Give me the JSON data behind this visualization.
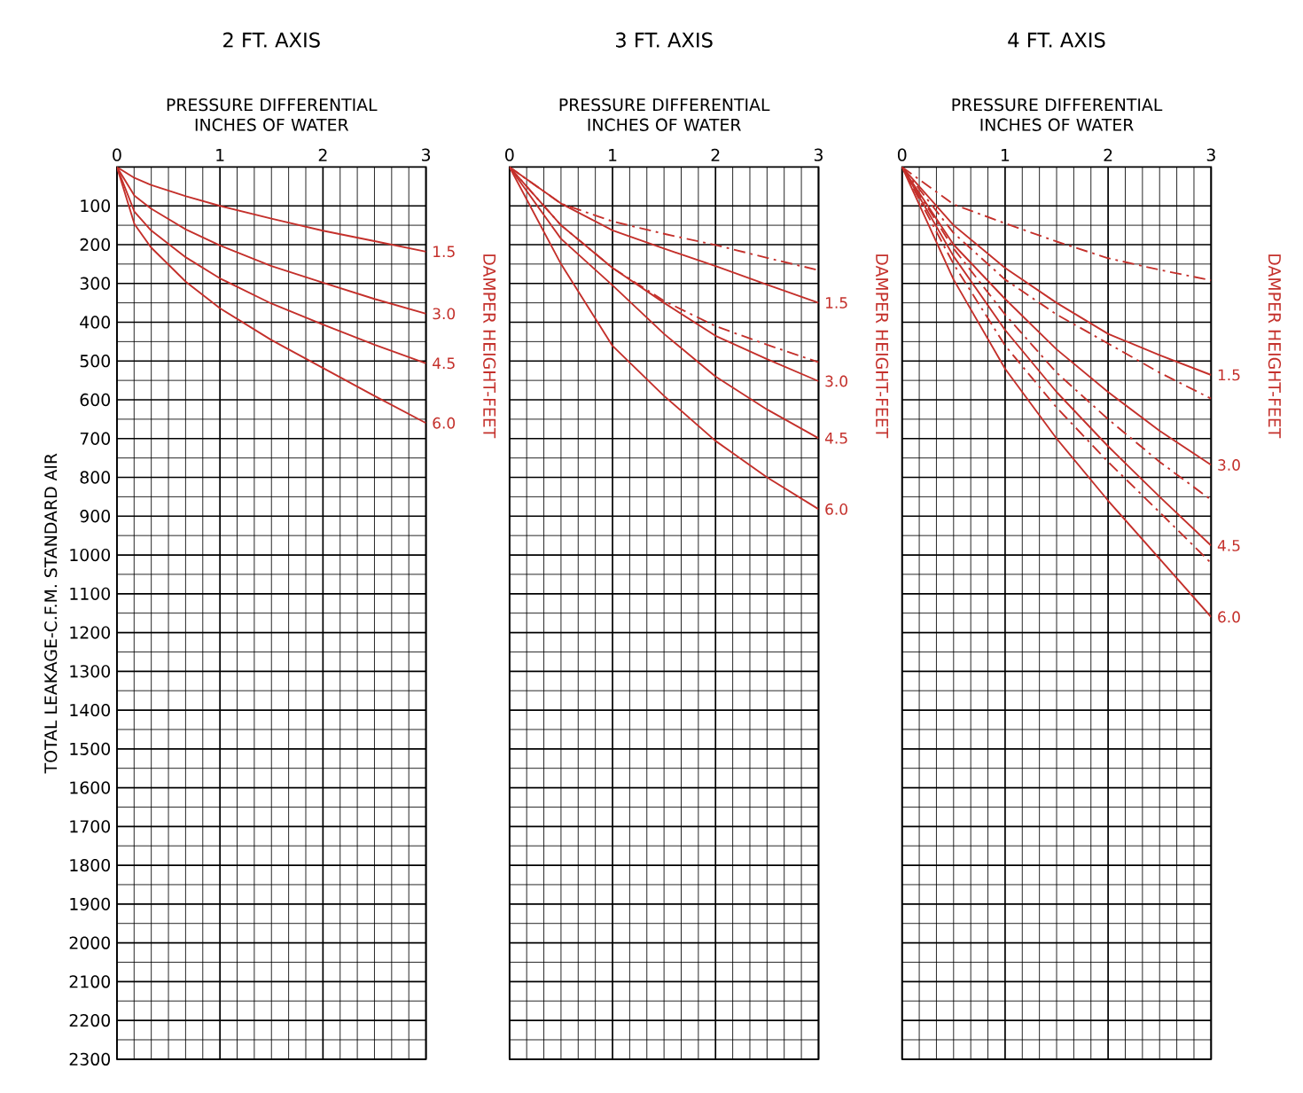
{
  "chart_data": [
    {
      "type": "line",
      "title": "2 FT. AXIS",
      "xlabel": "PRESSURE DIFFERENTIAL INCHES OF WATER",
      "ylabel": "TOTAL LEAKAGE-C.F.M. STANDARD AIR",
      "y2label": "DAMPER HEIGHT-FEET",
      "xlim": [
        0,
        3
      ],
      "xticks": [
        0,
        1,
        2,
        3
      ],
      "ylim": [
        2300,
        0
      ],
      "yticks": [
        100,
        200,
        300,
        400,
        500,
        600,
        700,
        800,
        900,
        1000,
        1100,
        1200,
        1300,
        1400,
        1500,
        1600,
        1700,
        1800,
        1900,
        2000,
        2100,
        2200,
        2300
      ],
      "grid": true,
      "x": [
        0,
        0.17,
        0.33,
        0.67,
        1,
        1.5,
        2,
        2.5,
        3
      ],
      "series": [
        {
          "name": "1.5",
          "color": "#c4302b",
          "values": [
            0,
            28,
            46,
            75,
            100,
            133,
            164,
            191,
            218
          ]
        },
        {
          "name": "3.0",
          "color": "#c4302b",
          "values": [
            0,
            74,
            107,
            161,
            202,
            255,
            298,
            340,
            378
          ]
        },
        {
          "name": "4.5",
          "color": "#c4302b",
          "values": [
            0,
            115,
            163,
            233,
            287,
            352,
            406,
            458,
            506
          ]
        },
        {
          "name": "6.0",
          "color": "#c4302b",
          "values": [
            0,
            147,
            207,
            296,
            364,
            446,
            518,
            590,
            660
          ]
        }
      ]
    },
    {
      "type": "line",
      "title": "3 FT. AXIS",
      "xlabel": "PRESSURE DIFFERENTIAL INCHES OF WATER",
      "y2label": "DAMPER HEIGHT-FEET",
      "xlim": [
        0,
        3
      ],
      "xticks": [
        0,
        1,
        2,
        3
      ],
      "ylim": [
        2300,
        0
      ],
      "yticks": [
        100,
        200,
        300,
        400,
        500,
        600,
        700,
        800,
        900,
        1000,
        1100,
        1200,
        1300,
        1400,
        1500,
        1600,
        1700,
        1800,
        1900,
        2000,
        2100,
        2200,
        2300
      ],
      "grid": true,
      "tick_labels": "x",
      "x": [
        0,
        0.5,
        1,
        1.5,
        2,
        2.5,
        3
      ],
      "series": [
        {
          "color": "#c4302b",
          "line_style": "dashed",
          "values": [
            0,
            94,
            140,
            172,
            201,
            234,
            266
          ]
        },
        {
          "name": "1.5",
          "color": "#c4302b",
          "values": [
            0,
            94,
            163,
            210,
            255,
            303,
            350
          ]
        },
        {
          "color": "#c4302b",
          "line_style": "dashed",
          "values": [
            0,
            150,
            260,
            345,
            410,
            458,
            503
          ]
        },
        {
          "name": "3.0",
          "color": "#c4302b",
          "values": [
            0,
            150,
            260,
            350,
            435,
            495,
            552
          ]
        },
        {
          "name": "4.5",
          "color": "#c4302b",
          "values": [
            0,
            185,
            305,
            430,
            540,
            625,
            699
          ]
        },
        {
          "name": "6.0",
          "color": "#c4302b",
          "values": [
            0,
            250,
            461,
            590,
            706,
            800,
            882
          ]
        }
      ]
    },
    {
      "type": "line",
      "title": "4 FT. AXIS",
      "xlabel": "PRESSURE DIFFERENTIAL INCHES OF WATER",
      "y2label": "DAMPER HEIGHT-FEET",
      "xlim": [
        0,
        3
      ],
      "xticks": [
        0,
        1,
        2,
        3
      ],
      "ylim": [
        2300,
        0
      ],
      "yticks": [
        100,
        200,
        300,
        400,
        500,
        600,
        700,
        800,
        900,
        1000,
        1100,
        1200,
        1300,
        1400,
        1500,
        1600,
        1700,
        1800,
        1900,
        2000,
        2100,
        2200,
        2300
      ],
      "grid": true,
      "tick_labels": "x",
      "x": [
        0,
        0.5,
        1,
        1.5,
        2,
        2.5,
        3
      ],
      "series": [
        {
          "color": "#c4302b",
          "line_style": "dashed",
          "values": [
            0,
            96,
            145,
            192,
            235,
            265,
            292
          ]
        },
        {
          "name": "1.5",
          "color": "#c4302b",
          "values": [
            0,
            150,
            260,
            350,
            430,
            485,
            536
          ]
        },
        {
          "color": "#c4302b",
          "line_style": "dashed",
          "values": [
            0,
            170,
            290,
            380,
            455,
            530,
            597
          ]
        },
        {
          "name": "3.0",
          "color": "#c4302b",
          "values": [
            0,
            200,
            340,
            470,
            580,
            680,
            768
          ]
        },
        {
          "color": "#c4302b",
          "line_style": "dashed",
          "values": [
            0,
            210,
            380,
            530,
            650,
            760,
            858
          ]
        },
        {
          "name": "4.5",
          "color": "#c4302b",
          "values": [
            0,
            230,
            420,
            580,
            720,
            850,
            976
          ]
        },
        {
          "color": "#c4302b",
          "line_style": "dashed",
          "values": [
            0,
            250,
            460,
            620,
            760,
            890,
            1021
          ]
        },
        {
          "name": "6.0",
          "color": "#c4302b",
          "values": [
            0,
            290,
            520,
            700,
            860,
            1010,
            1160
          ]
        }
      ]
    }
  ]
}
